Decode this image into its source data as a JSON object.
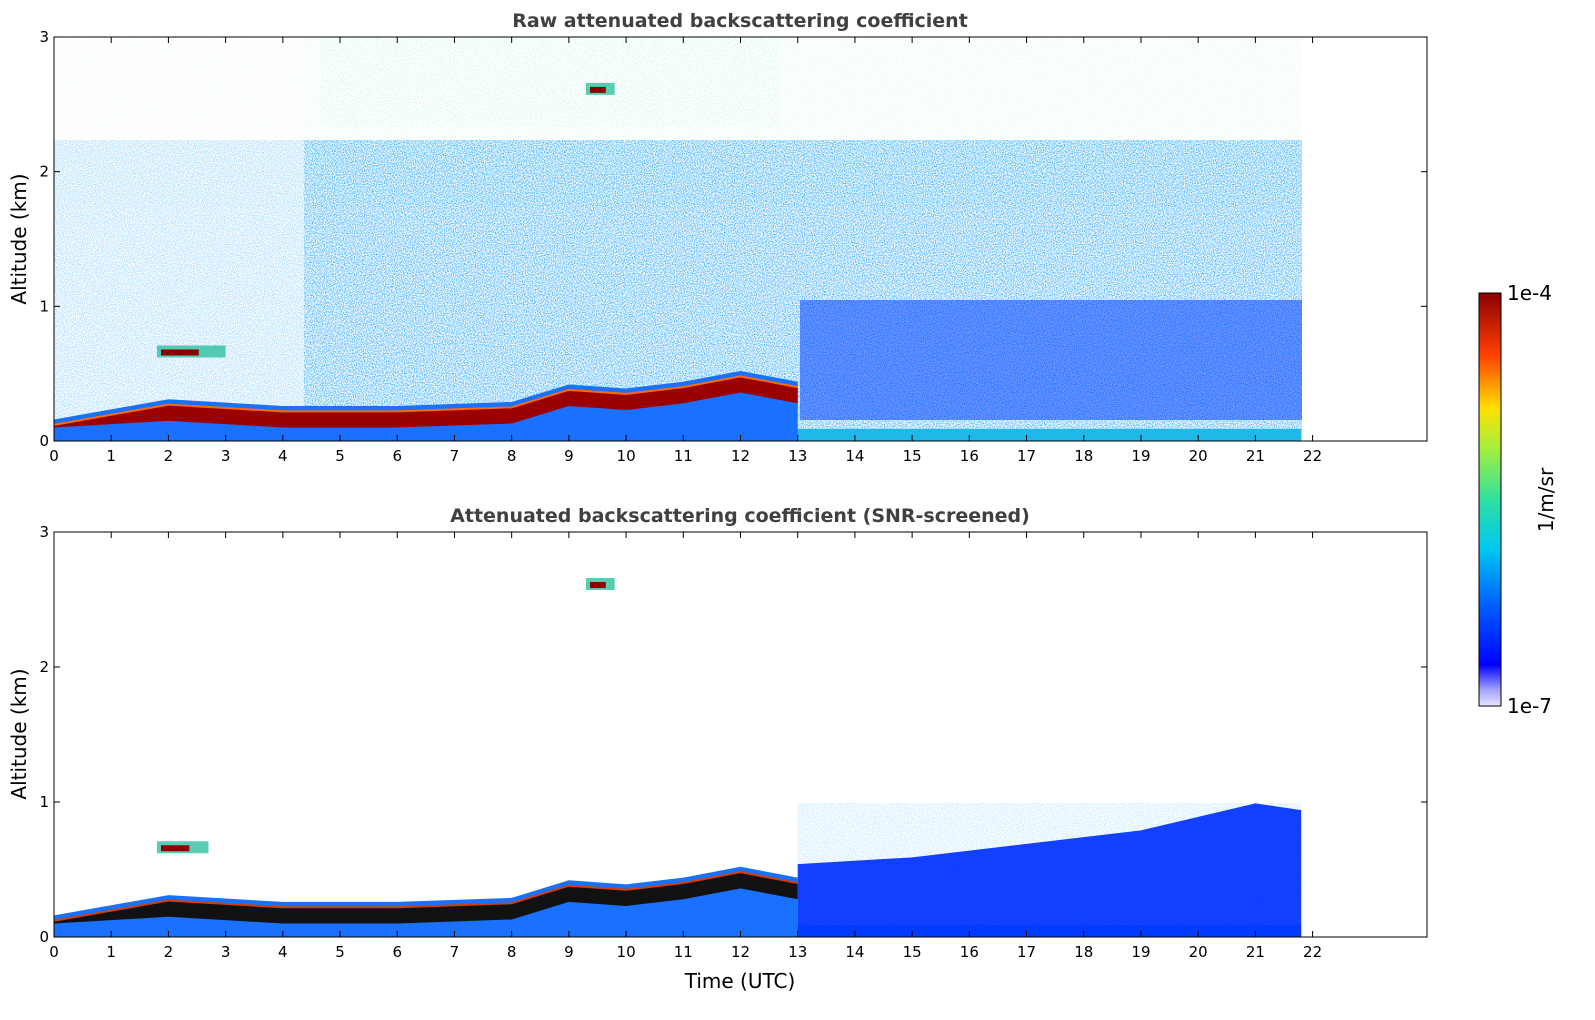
{
  "chart_data": [
    {
      "type": "heatmap",
      "title": "Raw attenuated backscattering coefficient",
      "xlabel": "",
      "ylabel": "Altitude (km)",
      "x_ticks": [
        "0",
        "1",
        "2",
        "3",
        "4",
        "5",
        "6",
        "7",
        "8",
        "9",
        "10",
        "11",
        "12",
        "13",
        "14",
        "15",
        "16",
        "17",
        "18",
        "19",
        "20",
        "21",
        "22"
      ],
      "y_ticks": [
        "0",
        "1",
        "2",
        "3"
      ],
      "xlim": [
        0,
        24
      ],
      "ylim": [
        0,
        3
      ],
      "data_end_time": 21.8,
      "layers": [
        {
          "name": "boundary-layer-aerosol",
          "time": [
            0,
            2,
            4,
            6,
            8,
            9,
            10,
            11,
            12,
            13
          ],
          "top_km": [
            0.12,
            0.27,
            0.22,
            0.22,
            0.25,
            0.38,
            0.35,
            0.4,
            0.48,
            0.4
          ]
        },
        {
          "name": "elevated-plume",
          "time": [
            1.8,
            3.0
          ],
          "altitude_km": 0.65
        },
        {
          "name": "high-layer",
          "time": [
            9.3,
            9.8
          ],
          "altitude_km": 2.6
        }
      ]
    },
    {
      "type": "heatmap",
      "title": "Attenuated backscattering coefficient (SNR-screened)",
      "xlabel": "Time (UTC)",
      "ylabel": "Altitude (km)",
      "x_ticks": [
        "0",
        "1",
        "2",
        "3",
        "4",
        "5",
        "6",
        "7",
        "8",
        "9",
        "10",
        "11",
        "12",
        "13",
        "14",
        "15",
        "16",
        "17",
        "18",
        "19",
        "20",
        "21",
        "22"
      ],
      "y_ticks": [
        "0",
        "1",
        "2",
        "3"
      ],
      "xlim": [
        0,
        24
      ],
      "ylim": [
        0,
        3
      ],
      "data_end_time": 21.8,
      "layers": [
        {
          "name": "boundary-layer-aerosol",
          "time": [
            0,
            2,
            4,
            6,
            8,
            9,
            10,
            11,
            12,
            13
          ],
          "top_km": [
            0.12,
            0.27,
            0.22,
            0.22,
            0.25,
            0.38,
            0.35,
            0.4,
            0.48,
            0.4
          ]
        },
        {
          "name": "residual-layer-noise",
          "time": [
            13,
            15,
            17,
            19,
            20,
            21,
            21.8
          ],
          "top_km": [
            0.5,
            0.55,
            0.65,
            0.75,
            0.85,
            0.95,
            0.9
          ]
        },
        {
          "name": "elevated-plume",
          "time": [
            1.8,
            2.7
          ],
          "altitude_km": 0.65
        },
        {
          "name": "high-layer",
          "time": [
            9.3,
            9.8
          ],
          "altitude_km": 2.6
        }
      ]
    }
  ],
  "colorbar": {
    "max_label": "1e-4",
    "min_label": "1e-7",
    "unit_label": "1/m/sr",
    "colormap": "jet"
  }
}
